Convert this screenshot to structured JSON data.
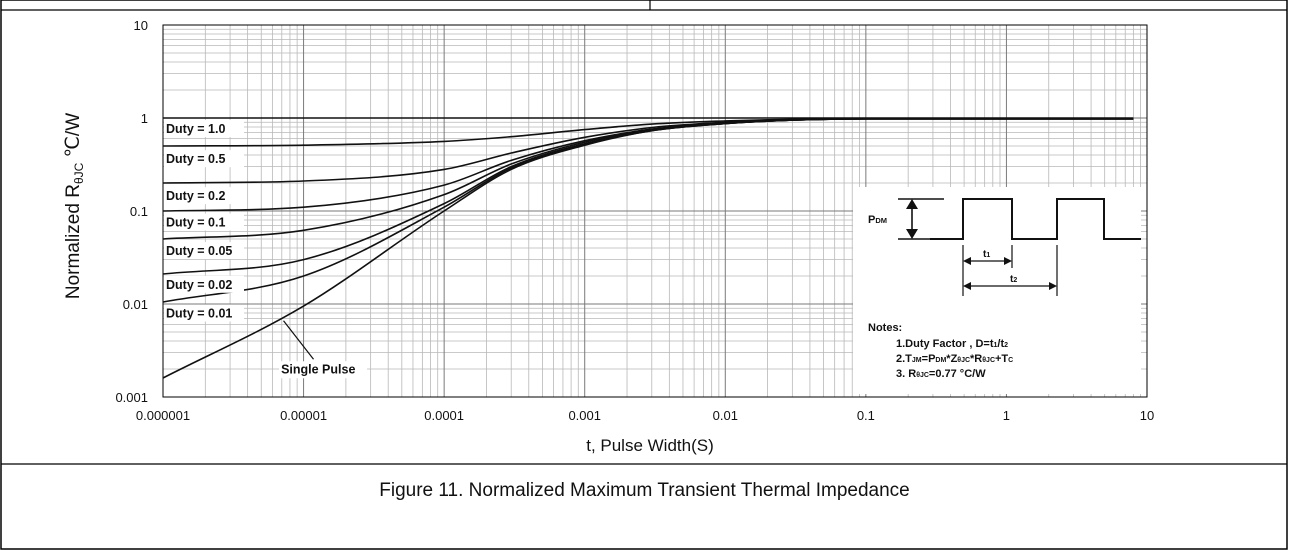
{
  "figure": {
    "caption": "Figure 11. Normalized Maximum Transient Thermal Impedance"
  },
  "chart_data": {
    "type": "line",
    "xlabel": "t, Pulse Width(S)",
    "ylabel_parts": {
      "prefix": "Normalized R",
      "sub": "θJC",
      "unit": " ℃/W"
    },
    "x_scale": "log",
    "y_scale": "log",
    "xlim": [
      1e-06,
      10
    ],
    "ylim": [
      0.001,
      10
    ],
    "x_ticks": [
      {
        "value": 1e-06,
        "label": "0.000001"
      },
      {
        "value": 1e-05,
        "label": "0.00001"
      },
      {
        "value": 0.0001,
        "label": "0.0001"
      },
      {
        "value": 0.001,
        "label": "0.001"
      },
      {
        "value": 0.01,
        "label": "0.01"
      },
      {
        "value": 0.1,
        "label": "0.1"
      },
      {
        "value": 1,
        "label": "1"
      },
      {
        "value": 10,
        "label": "10"
      }
    ],
    "y_ticks": [
      {
        "value": 0.001,
        "label": "0.001"
      },
      {
        "value": 0.01,
        "label": "0.01"
      },
      {
        "value": 0.1,
        "label": "0.1"
      },
      {
        "value": 1,
        "label": "1"
      },
      {
        "value": 10,
        "label": "10"
      }
    ],
    "grid": true,
    "series": [
      {
        "name": "Duty = 1.0",
        "points": [
          [
            1e-06,
            1
          ],
          [
            8,
            1
          ]
        ]
      },
      {
        "name": "Duty = 0.5",
        "points": [
          [
            1e-06,
            0.5
          ],
          [
            1e-05,
            0.51
          ],
          [
            0.0001,
            0.56
          ],
          [
            0.0003,
            0.63
          ],
          [
            0.001,
            0.75
          ],
          [
            0.003,
            0.86
          ],
          [
            0.01,
            0.93
          ],
          [
            0.03,
            0.97
          ],
          [
            0.1,
            0.985
          ],
          [
            8,
            0.985
          ]
        ]
      },
      {
        "name": "Duty = 0.2",
        "points": [
          [
            1e-06,
            0.2
          ],
          [
            1e-05,
            0.21
          ],
          [
            0.0001,
            0.28
          ],
          [
            0.0003,
            0.42
          ],
          [
            0.001,
            0.62
          ],
          [
            0.003,
            0.79
          ],
          [
            0.01,
            0.9
          ],
          [
            0.03,
            0.96
          ],
          [
            0.1,
            0.98
          ],
          [
            8,
            0.98
          ]
        ]
      },
      {
        "name": "Duty = 0.1",
        "points": [
          [
            1e-06,
            0.1
          ],
          [
            1e-05,
            0.11
          ],
          [
            0.0001,
            0.19
          ],
          [
            0.0003,
            0.35
          ],
          [
            0.001,
            0.57
          ],
          [
            0.003,
            0.76
          ],
          [
            0.01,
            0.88
          ],
          [
            0.03,
            0.95
          ],
          [
            0.1,
            0.98
          ],
          [
            8,
            0.98
          ]
        ]
      },
      {
        "name": "Duty = 0.05",
        "points": [
          [
            1e-06,
            0.05
          ],
          [
            1e-05,
            0.062
          ],
          [
            0.0001,
            0.15
          ],
          [
            0.0003,
            0.32
          ],
          [
            0.001,
            0.55
          ],
          [
            0.003,
            0.75
          ],
          [
            0.01,
            0.88
          ],
          [
            0.03,
            0.95
          ],
          [
            0.1,
            0.98
          ],
          [
            8,
            0.98
          ]
        ]
      },
      {
        "name": "Duty = 0.02",
        "points": [
          [
            1e-06,
            0.021
          ],
          [
            1e-05,
            0.03
          ],
          [
            0.0001,
            0.12
          ],
          [
            0.0003,
            0.3
          ],
          [
            0.001,
            0.53
          ],
          [
            0.003,
            0.74
          ],
          [
            0.01,
            0.87
          ],
          [
            0.03,
            0.95
          ],
          [
            0.1,
            0.98
          ],
          [
            8,
            0.98
          ]
        ]
      },
      {
        "name": "Duty = 0.01",
        "points": [
          [
            1e-06,
            0.0105
          ],
          [
            1e-05,
            0.02
          ],
          [
            0.0001,
            0.11
          ],
          [
            0.0003,
            0.29
          ],
          [
            0.001,
            0.52
          ],
          [
            0.003,
            0.73
          ],
          [
            0.01,
            0.87
          ],
          [
            0.03,
            0.95
          ],
          [
            0.1,
            0.98
          ],
          [
            8,
            0.98
          ]
        ]
      },
      {
        "name": "Single Pulse",
        "points": [
          [
            1e-06,
            0.0016
          ],
          [
            1e-05,
            0.0095
          ],
          [
            0.0001,
            0.1
          ],
          [
            0.0003,
            0.28
          ],
          [
            0.001,
            0.51
          ],
          [
            0.003,
            0.73
          ],
          [
            0.01,
            0.87
          ],
          [
            0.03,
            0.95
          ],
          [
            0.1,
            0.98
          ],
          [
            8,
            0.98
          ]
        ]
      }
    ],
    "duty_labels": [
      {
        "text": "Duty = 1.0",
        "y": 0.78
      },
      {
        "text": "Duty = 0.5",
        "y": 0.37
      },
      {
        "text": "Duty = 0.2",
        "y": 0.148
      },
      {
        "text": "Duty = 0.1",
        "y": 0.077
      },
      {
        "text": "Duty = 0.05",
        "y": 0.038
      },
      {
        "text": "Duty = 0.02",
        "y": 0.0165
      },
      {
        "text": "Duty = 0.01",
        "y": 0.0081
      }
    ],
    "annotation": {
      "text": "Single Pulse",
      "text_x": 5.5e-06,
      "text_y": 0.0018,
      "target_x": 7.2e-06,
      "target_y": 0.0066
    },
    "inset": {
      "pdm_label": "P",
      "pdm_sub": "DM",
      "t1_label": "t",
      "t1_sub": "1",
      "t2_label": "t",
      "t2_sub": "2",
      "notes_title": "Notes:",
      "note1_prefix": "1.Duty Factor , D=t",
      "note1_sub1": "1",
      "note1_mid": "/t",
      "note1_sub2": "2",
      "note2_a": "2.T",
      "note2_b": "JM",
      "note2_c": "=P",
      "note2_d": "DM",
      "note2_e": "*Z",
      "note2_f": "θJC",
      "note2_g": "*R",
      "note2_h": "θJC",
      "note2_i": "+T",
      "note2_j": "C",
      "note3_a": "3. R",
      "note3_b": "θJC",
      "note3_c": "=0.77 °C/W"
    }
  }
}
